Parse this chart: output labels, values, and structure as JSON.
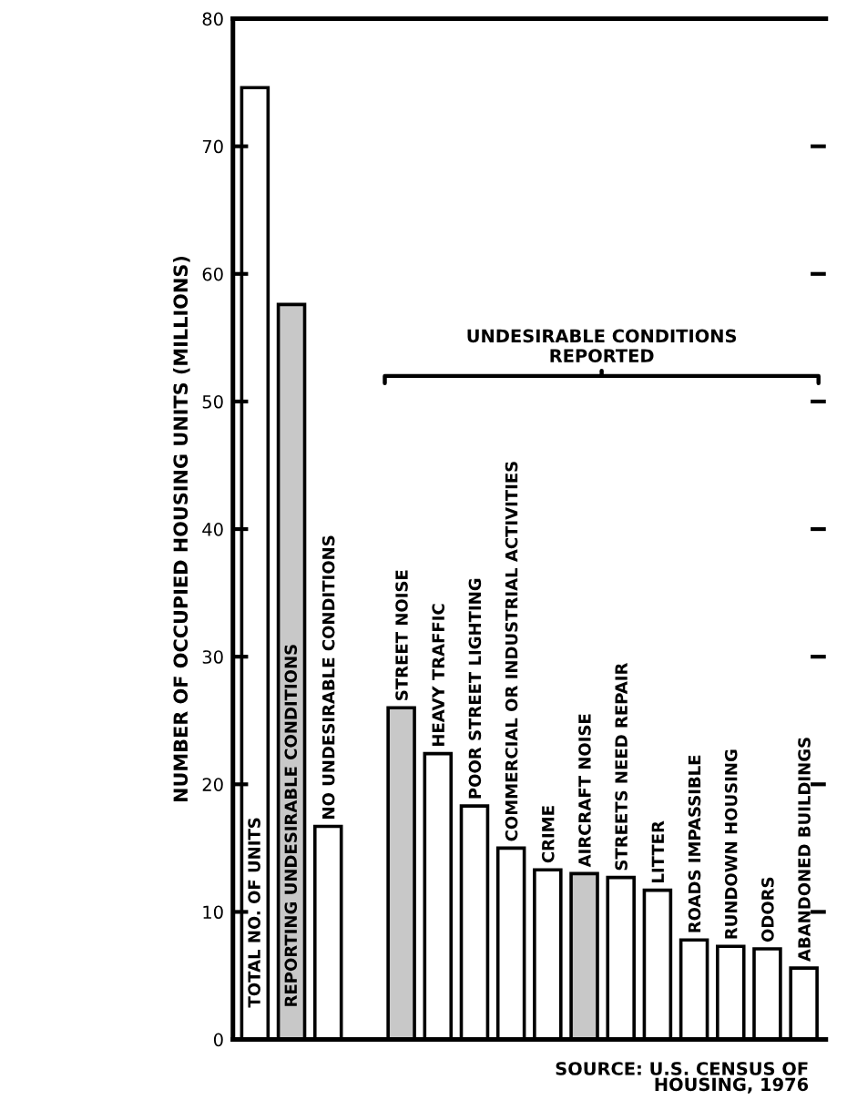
{
  "chart_data": {
    "type": "bar",
    "ylabel": "NUMBER OF OCCUPIED HOUSING UNITS (MILLIONS)",
    "categories": [
      "TOTAL NO. OF UNITS",
      "REPORTING UNDESIRABLE CONDITIONS",
      "NO UNDESIRABLE CONDITIONS",
      null,
      "STREET NOISE",
      "HEAVY TRAFFIC",
      "POOR STREET LIGHTING",
      "COMMERCIAL OR INDUSTRIAL ACTIVITIES",
      "CRIME",
      "AIRCRAFT NOISE",
      "STREETS NEED REPAIR",
      "LITTER",
      "ROADS IMPASSIBLE",
      "RUNDOWN HOUSING",
      "ODORS",
      "ABANDONED BUILDINGS"
    ],
    "values": [
      74.6,
      57.6,
      16.7,
      null,
      26.0,
      22.4,
      18.3,
      15.0,
      13.3,
      13.0,
      12.7,
      11.7,
      7.8,
      7.3,
      7.1,
      5.6
    ],
    "colors": [
      "#ffffff",
      "#c8c8c8",
      "#ffffff",
      "#ffffff",
      "#c8c8c8",
      "#ffffff",
      "#ffffff",
      "#ffffff",
      "#ffffff",
      "#c8c8c8",
      "#ffffff",
      "#ffffff",
      "#ffffff",
      "#ffffff",
      "#ffffff",
      "#ffffff"
    ],
    "ylim": [
      0,
      80
    ],
    "yticks": [
      0,
      10,
      20,
      30,
      40,
      50,
      60,
      70,
      80
    ],
    "tick_labels": "y",
    "grid": false,
    "annotations": [
      "UNDESIRABLE CONDITIONS\nREPORTED",
      "SOURCE: U.S. CENSUS OF\nHOUSING, 1976"
    ]
  }
}
